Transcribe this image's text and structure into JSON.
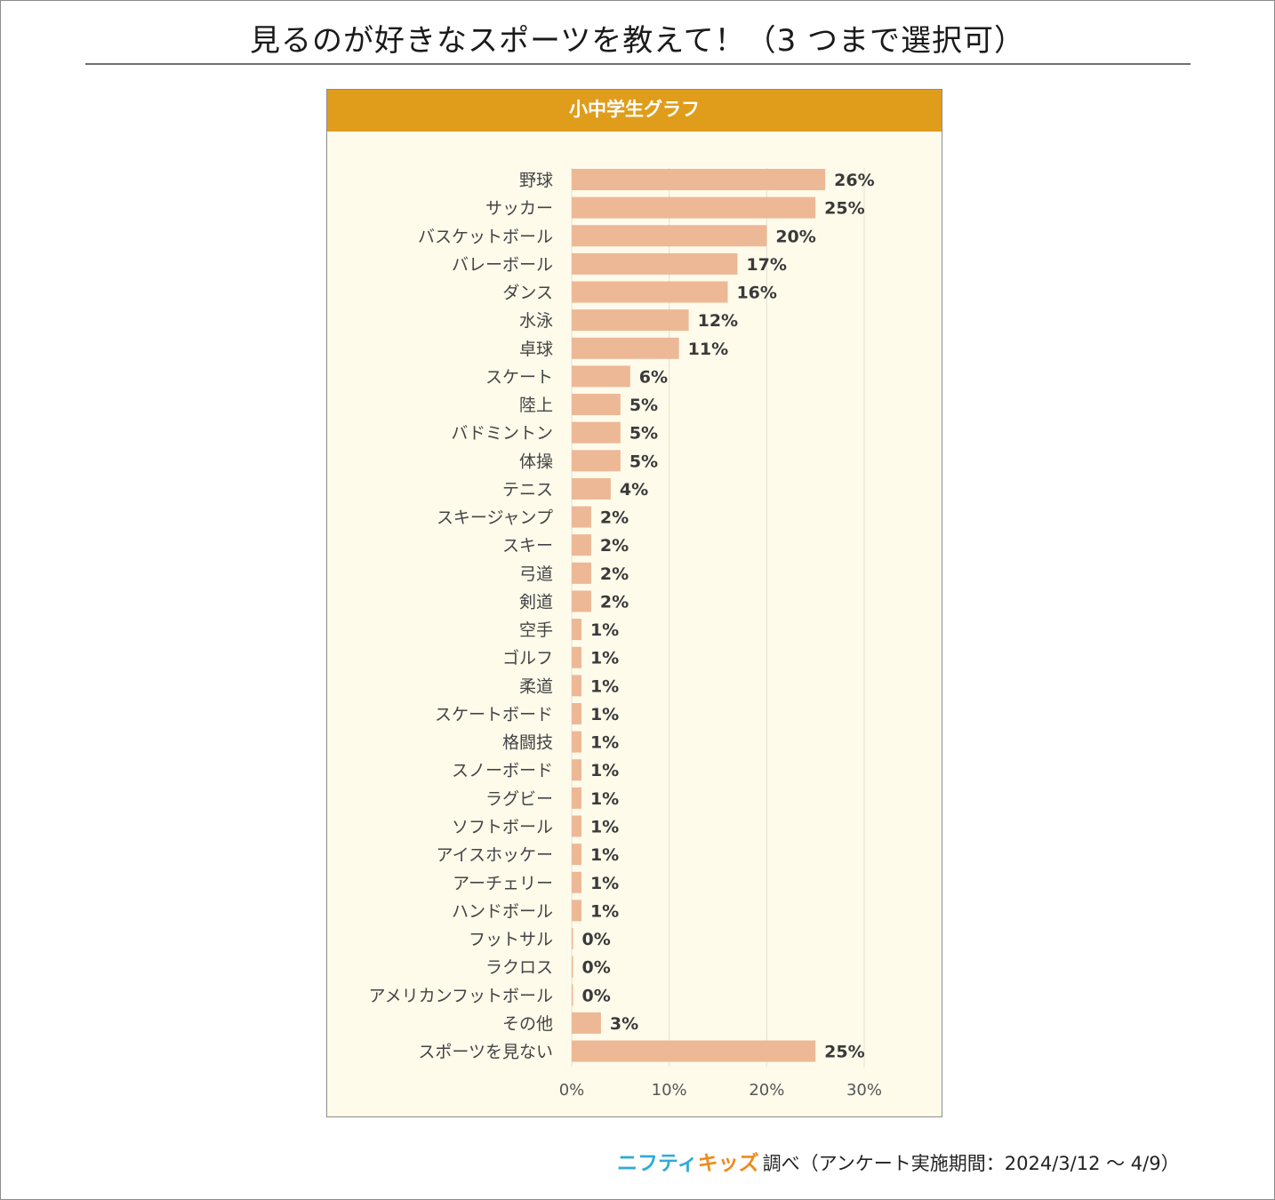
{
  "title": "見るのが好きなスポーツを教えて！（3 つまで選択可）",
  "panel_title": "小中学生グラフ",
  "chart_data": {
    "type": "bar",
    "orientation": "horizontal",
    "title": "小中学生グラフ",
    "categories": [
      "野球",
      "サッカー",
      "バスケットボール",
      "バレーボール",
      "ダンス",
      "水泳",
      "卓球",
      "スケート",
      "陸上",
      "バドミントン",
      "体操",
      "テニス",
      "スキージャンプ",
      "スキー",
      "弓道",
      "剣道",
      "空手",
      "ゴルフ",
      "柔道",
      "スケートボード",
      "格闘技",
      "スノーボード",
      "ラグビー",
      "ソフトボール",
      "アイスホッケー",
      "アーチェリー",
      "ハンドボール",
      "フットサル",
      "ラクロス",
      "アメリカンフットボール",
      "その他",
      "スポーツを見ない"
    ],
    "values": [
      26,
      25,
      20,
      17,
      16,
      12,
      11,
      6,
      5,
      5,
      5,
      4,
      2,
      2,
      2,
      2,
      1,
      1,
      1,
      1,
      1,
      1,
      1,
      1,
      1,
      1,
      1,
      0,
      0,
      0,
      3,
      25
    ],
    "value_labels": [
      "26%",
      "25%",
      "20%",
      "17%",
      "16%",
      "12%",
      "11%",
      "6%",
      "5%",
      "5%",
      "5%",
      "4%",
      "2%",
      "2%",
      "2%",
      "2%",
      "1%",
      "1%",
      "1%",
      "1%",
      "1%",
      "1%",
      "1%",
      "1%",
      "1%",
      "1%",
      "1%",
      "0%",
      "0%",
      "0%",
      "3%",
      "25%"
    ],
    "xlim": [
      0,
      30
    ],
    "xticks": [
      "0%",
      "10%",
      "20%",
      "30%"
    ],
    "grid": "vertical",
    "bar_color": "#edb896"
  },
  "footer": {
    "logo_part1": "ニフティ",
    "logo_part2": "キッズ",
    "text": "調べ（アンケート実施期間：2024/3/12 ～ 4/9）"
  }
}
